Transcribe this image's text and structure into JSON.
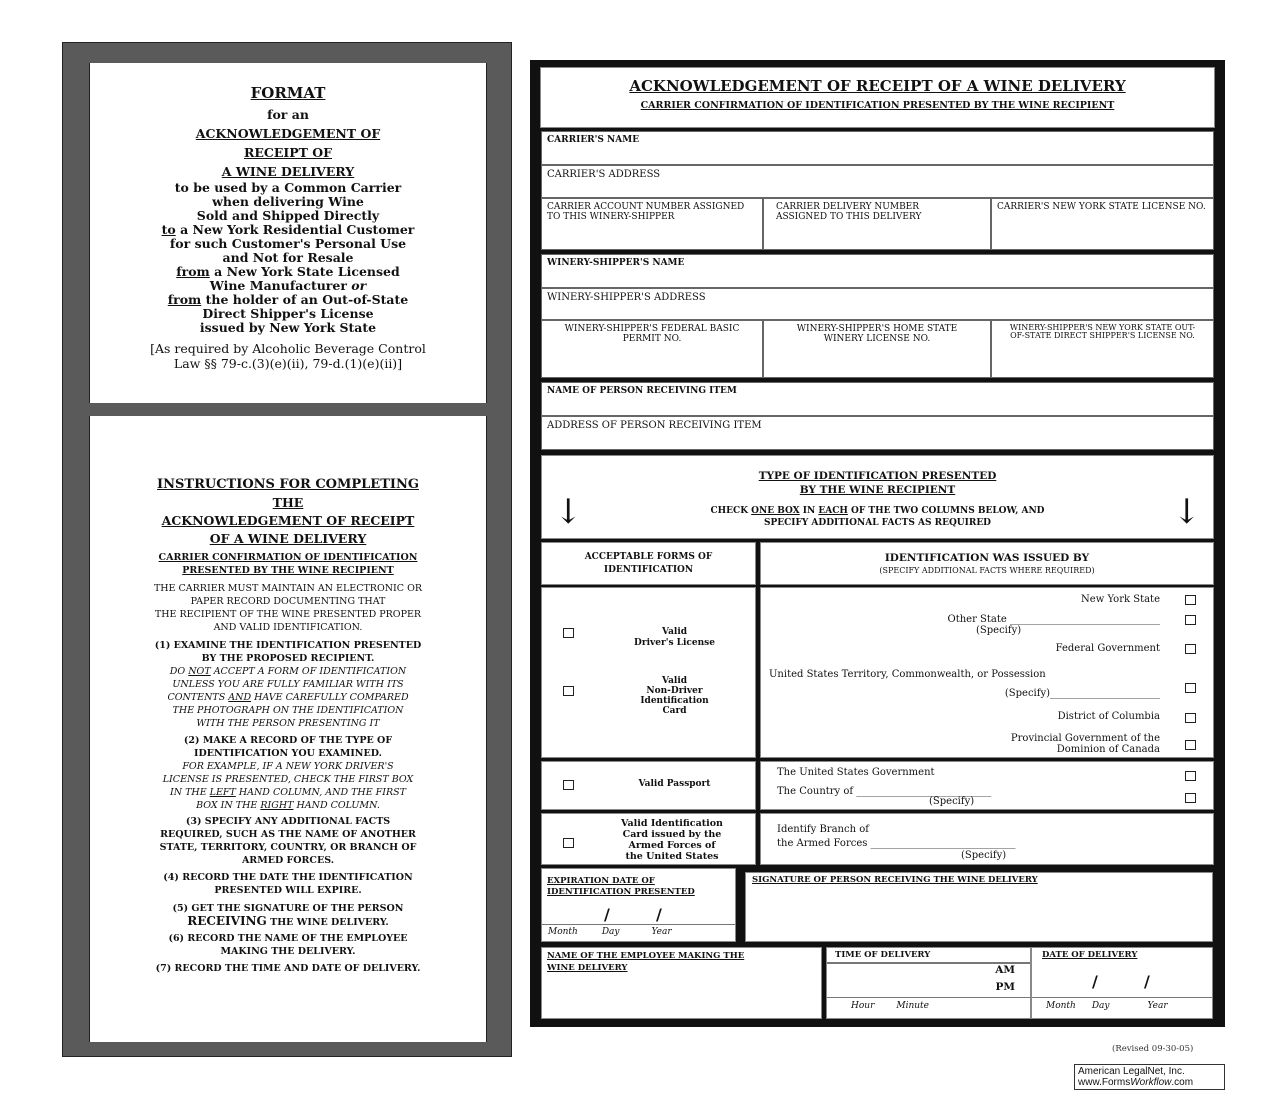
{
  "left": {
    "format": {
      "title": "FORMAT",
      "lines": [
        "for an",
        "ACKNOWLEDGEMENT OF",
        "RECEIPT OF",
        "A WINE DELIVERY"
      ],
      "body": [
        "to be used by a Common Carrier",
        "when delivering  Wine",
        "Sold and Shipped Directly"
      ],
      "to": "to",
      "to_rest": " a New York Residential Customer",
      "body2": [
        "for such Customer's Personal Use",
        "and Not for Resale"
      ],
      "from1": "from",
      "from1_rest": " a New York State Licensed",
      "wm": "Wine Manufacturer ",
      "or": "or",
      "from2": "from",
      "from2_rest": " the holder of an Out-of-State",
      "body3": [
        "Direct Shipper's License",
        "issued by New York State"
      ],
      "law": [
        "[As required by Alcoholic Beverage Control",
        "Law §§ 79-c.(3)(e)(ii), 79-d.(1)(e)(ii)]"
      ]
    },
    "instructions": {
      "title": [
        "INSTRUCTIONS FOR COMPLETING",
        "THE",
        "ACKNOWLEDGEMENT OF RECEIPT",
        "OF A WINE DELIVERY"
      ],
      "sub": [
        "CARRIER CONFIRMATION OF IDENTIFICATION",
        "PRESENTED BY THE WINE RECIPIENT"
      ],
      "intro": [
        "THE CARRIER MUST MAINTAIN AN ELECTRONIC OR",
        "PAPER RECORD DOCUMENTING THAT",
        "THE RECIPIENT OF THE WINE PRESENTED PROPER",
        "AND VALID IDENTIFICATION."
      ],
      "s1": [
        "(1)   EXAMINE THE IDENTIFICATION PRESENTED",
        "BY THE PROPOSED RECIPIENT."
      ],
      "s1i": {
        "a": "DO ",
        "not": "NOT",
        "b": " ACCEPT A FORM OF IDENTIFICATION",
        "c": "UNLESS YOU ARE FULLY FAMILIAR WITH ITS",
        "d": "CONTENTS ",
        "and": "AND",
        "e": " HAVE CAREFULLY COMPARED",
        "f": "THE PHOTOGRAPH ON THE IDENTIFICATION",
        "g": "WITH THE PERSON PRESENTING IT"
      },
      "s2": [
        "(2)   MAKE A RECORD OF THE TYPE OF",
        "IDENTIFICATION YOU EXAMINED."
      ],
      "s2i": {
        "a": "FOR EXAMPLE, IF A NEW YORK DRIVER'S",
        "b": "LICENSE IS PRESENTED, CHECK THE FIRST BOX",
        "c": "IN THE ",
        "left": "LEFT",
        "d": " HAND COLUMN, AND THE FIRST",
        "e": "BOX IN THE ",
        "right": "RIGHT",
        "f": " HAND COLUMN."
      },
      "s3": [
        "(3)   SPECIFY ANY ADDITIONAL FACTS",
        "REQUIRED, SUCH AS THE NAME OF ANOTHER",
        "STATE, TERRITORY, COUNTRY, OR BRANCH OF",
        "ARMED FORCES."
      ],
      "s4": [
        "(4)   RECORD THE DATE THE IDENTIFICATION",
        "PRESENTED WILL EXPIRE."
      ],
      "s5a": "(5)   GET THE SIGNATURE OF THE PERSON",
      "s5b": "RECEIVING",
      "s5c": " THE WINE DELIVERY.",
      "s6": [
        "(6)   RECORD THE NAME OF THE EMPLOYEE",
        "MAKING THE DELIVERY."
      ],
      "s7": "(7)   RECORD THE TIME AND DATE OF DELIVERY."
    }
  },
  "form": {
    "title": "ACKNOWLEDGEMENT OF RECEIPT OF A WINE DELIVERY",
    "subtitle": "CARRIER CONFIRMATION OF IDENTIFICATION PRESENTED BY THE WINE RECIPIENT",
    "carrier_name": "CARRIER'S NAME",
    "carrier_address": "CARRIER'S ADDRESS",
    "carrier_account": "CARRIER ACCOUNT NUMBER ASSIGNED TO THIS WINERY-SHIPPER",
    "carrier_delivery": "CARRIER DELIVERY  NUMBER ASSIGNED TO THIS DELIVERY",
    "carrier_license": "CARRIER'S NEW YORK STATE LICENSE NO.",
    "winery_name": "WINERY-SHIPPER'S NAME",
    "winery_address": "WINERY-SHIPPER'S ADDRESS",
    "winery_federal": "WINERY-SHIPPER'S FEDERAL BASIC PERMIT NO.",
    "winery_home": "WINERY-SHIPPER'S HOME STATE WINERY LICENSE NO.",
    "winery_ny": "WINERY-SHIPPER'S NEW YORK STATE OUT-OF-STATE DIRECT SHIPPER'S LICENSE NO.",
    "person_name": "NAME OF PERSON RECEIVING ITEM",
    "person_address": "ADDRESS OF PERSON RECEIVING ITEM",
    "type_title": [
      "TYPE OF IDENTIFICATION PRESENTED",
      "BY THE WINE RECIPIENT"
    ],
    "check": {
      "a": "CHECK  ",
      "one": "ONE BOX",
      "b": "  IN ",
      "each": "EACH",
      "c": " OF THE TWO COLUMNS BELOW, AND",
      "d": "SPECIFY ADDITIONAL FACTS AS REQUIRED"
    },
    "arrow": "↓",
    "col_left": [
      "ACCEPTABLE FORMS OF",
      "IDENTIFICATION"
    ],
    "col_right": "IDENTIFICATION WAS ISSUED BY",
    "col_right_sub": "(SPECIFY ADDITIONAL FACTS WHERE REQUIRED)",
    "forms": {
      "dl": [
        "Valid",
        "Driver's License"
      ],
      "nd": [
        "Valid",
        "Non-Driver",
        "Identification",
        "Card"
      ],
      "pp": "Valid Passport",
      "mil": [
        "Valid Identification",
        "Card issued by the",
        "Armed Forces of",
        "the United States"
      ]
    },
    "issuers": {
      "ny": "New York State",
      "other": "Other State  ______________________________",
      "specify": "(Specify)",
      "fed": "Federal Government",
      "terr": "United States Territory, Commonwealth, or Possession",
      "terr_spec": "(Specify)______________________",
      "dc": "District of Columbia",
      "prov": [
        "Provincial Government of the",
        "Dominion of Canada"
      ],
      "usg": "The United States Government",
      "country": "The Country of  ___________________________",
      "branch": "Identify Branch of",
      "forces": "the Armed Forces   _____________________________"
    },
    "expiration": [
      "EXPIRATION  DATE OF",
      "IDENTIFICATION PRESENTED"
    ],
    "slash": "/",
    "month": "Month",
    "day": "Day",
    "year": "Year",
    "signature": "SIGNATURE OF PERSON RECEIVING THE WINE DELIVERY",
    "employee": [
      "NAME OF THE EMPLOYEE MAKING THE",
      "WINE DELIVERY"
    ],
    "time": "TIME OF DELIVERY",
    "am": "AM",
    "pm": "PM",
    "hour": "Hour",
    "minute": "Minute",
    "date": "DATE OF DELIVERY"
  },
  "revised": "(Revised 09-30-05)",
  "publisher": {
    "line1": "American LegalNet, Inc.",
    "www": "www.Forms",
    "workflow": "Workflow",
    ".com": ".com"
  }
}
